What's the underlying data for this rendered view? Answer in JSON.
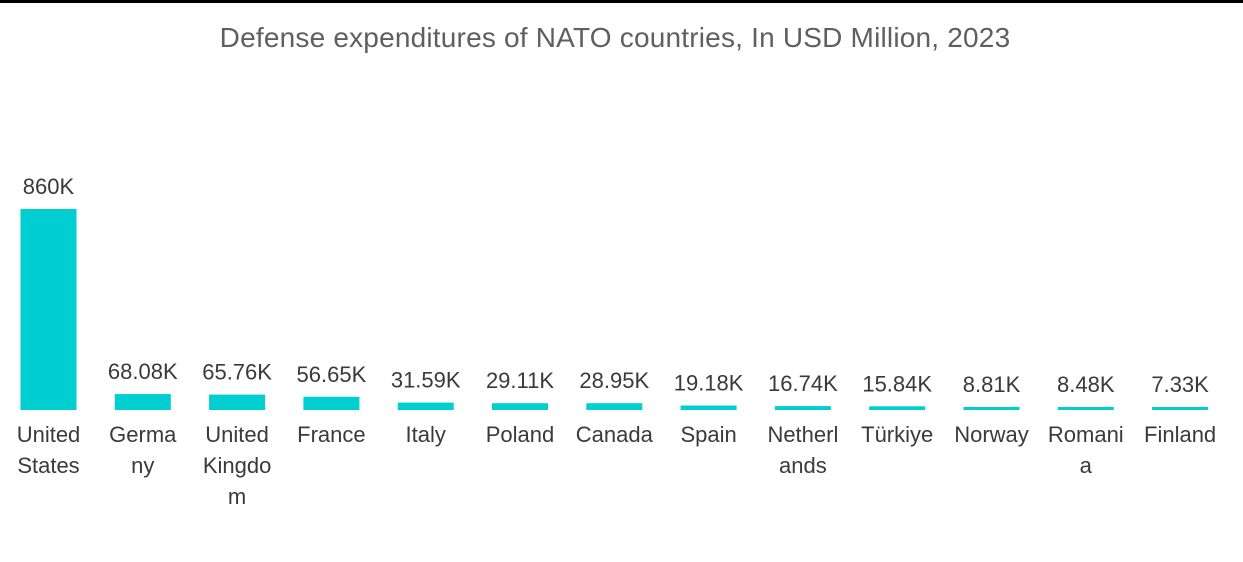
{
  "chart_data": {
    "type": "bar",
    "title": "Defense expenditures of NATO countries, In USD Million, 2023",
    "xlabel": "",
    "ylabel": "",
    "categories": [
      "United States",
      "Germany",
      "United Kingdom",
      "France",
      "Italy",
      "Poland",
      "Canada",
      "Spain",
      "Netherlands",
      "Türkiye",
      "Norway",
      "Romania",
      "Finland"
    ],
    "category_display_lines": [
      [
        "United",
        "States"
      ],
      [
        "Germa",
        "ny"
      ],
      [
        "United",
        "Kingdo",
        "m"
      ],
      [
        "France"
      ],
      [
        "Italy"
      ],
      [
        "Poland"
      ],
      [
        "Canada"
      ],
      [
        "Spain"
      ],
      [
        "Netherl",
        "ands"
      ],
      [
        "Türkiye"
      ],
      [
        "Norway"
      ],
      [
        "Romani",
        "a"
      ],
      [
        "Finland"
      ]
    ],
    "values": [
      860000,
      68080,
      65760,
      56650,
      31590,
      29110,
      28950,
      19180,
      16740,
      15840,
      8810,
      8480,
      7330
    ],
    "value_labels": [
      "860K",
      "68.08K",
      "65.76K",
      "56.65K",
      "31.59K",
      "29.11K",
      "28.95K",
      "19.18K",
      "16.74K",
      "15.84K",
      "8.81K",
      "8.48K",
      "7.33K"
    ],
    "ylim": [
      0,
      860000
    ],
    "grid": false,
    "legend": "none",
    "bar_color": "#00ced1"
  }
}
